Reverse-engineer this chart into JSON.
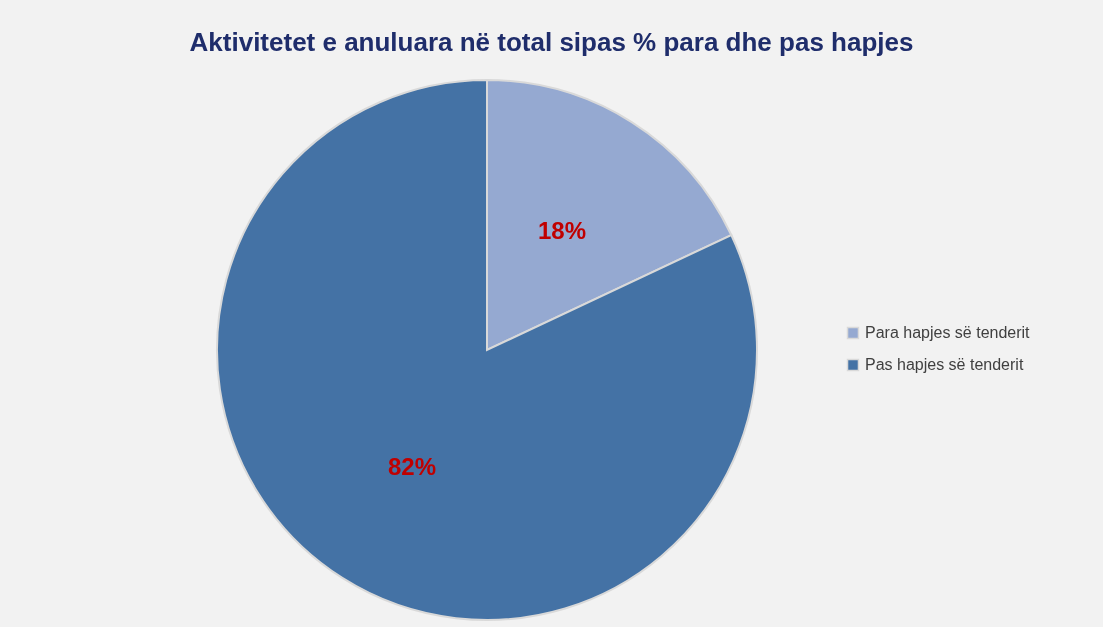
{
  "chart_data": {
    "type": "pie",
    "title": "Aktivitetet e anuluara në total sipas % para dhe pas hapjes",
    "categories": [
      "Para hapjes së tenderit",
      "Pas hapjes së tenderit"
    ],
    "values": [
      18,
      82
    ],
    "colors": [
      "#95a9d1",
      "#4472a5"
    ],
    "value_labels": [
      "18%",
      "82%"
    ],
    "legend": "right"
  }
}
